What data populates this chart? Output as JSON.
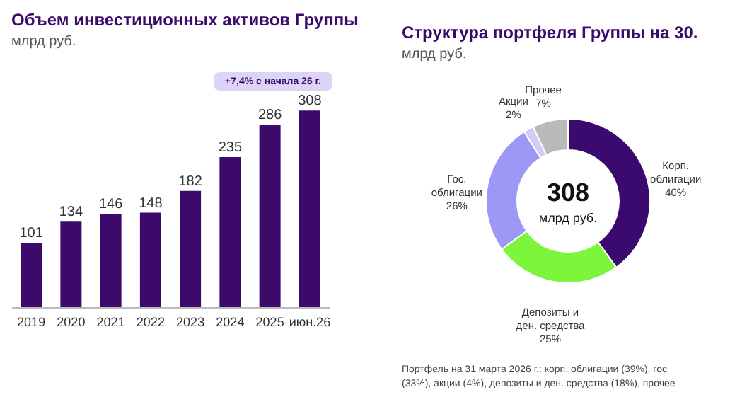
{
  "chart_data": [
    {
      "type": "bar",
      "title": "Объем инвестиционных активов Группы",
      "subtitle": "млрд руб.",
      "categories": [
        "2019",
        "2020",
        "2021",
        "2022",
        "2023",
        "2024",
        "2025",
        "июн.26"
      ],
      "values": [
        101,
        134,
        146,
        148,
        182,
        235,
        286,
        308
      ],
      "color": "#3b0a6b",
      "data_labels": true,
      "annotations": [
        "+7,4% с начала 26 г."
      ]
    },
    {
      "type": "donut",
      "title": "Структура портфеля Группы на 30.",
      "subtitle": "млрд руб.",
      "categories": [
        "Корп. облигации",
        "Депозиты и ден. средства",
        "Гос. облигации",
        "Акции",
        "Прочее"
      ],
      "values": [
        40,
        25,
        26,
        2,
        7
      ],
      "value_labels": [
        "40%",
        "25%",
        "26%",
        "2%",
        "7%"
      ],
      "colors": [
        "#3a0a6e",
        "#7cf53a",
        "#9d98f5",
        "#d0cbf8",
        "#b9b9b9"
      ],
      "annotations": [
        "308",
        "млрд руб.",
        "Портфель на 31 марта 2026 г.: корп. облигации (39%), гос",
        "(33%), акции (4%), депозиты и ден. средства (18%), прочее"
      ]
    }
  ]
}
